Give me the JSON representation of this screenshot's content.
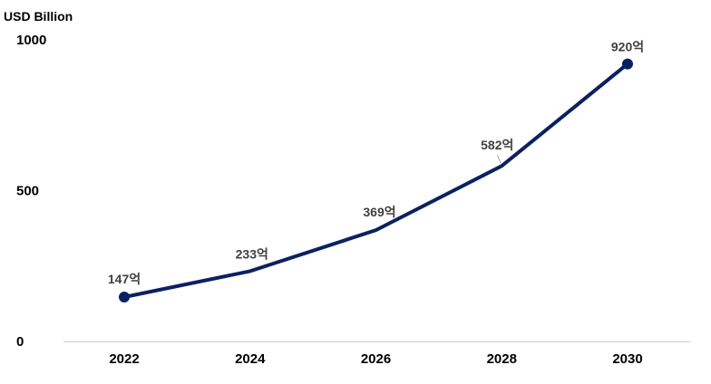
{
  "chart_data": {
    "type": "line",
    "ylabel": "USD Billion",
    "x": [
      "2022",
      "2024",
      "2026",
      "2028",
      "2030"
    ],
    "series": [
      {
        "values": [
          147,
          233,
          369,
          582,
          920
        ],
        "labels": [
          "147억",
          "233억",
          "369억",
          "582억",
          "920억"
        ],
        "color": "#0b2161"
      }
    ],
    "ylim": [
      0,
      1000
    ],
    "yticks": [
      "0",
      "500",
      "1000"
    ],
    "grid": false,
    "legend": "none"
  }
}
